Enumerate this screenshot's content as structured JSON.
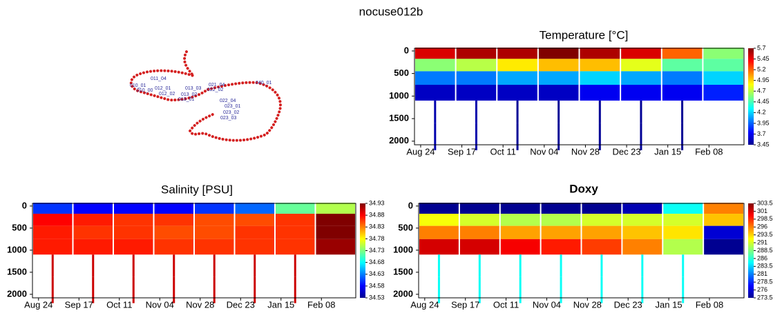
{
  "title": "nocuse012b",
  "chart_data": [
    {
      "type": "track",
      "labels": [
        "010_00",
        "010_01",
        "011_04",
        "012_01",
        "012_02",
        "013_01",
        "013_02",
        "013_03",
        "021_04",
        "022_02",
        "022_04",
        "023_01",
        "023_02",
        "023_03",
        "040_01"
      ],
      "color": "#d42020"
    },
    {
      "type": "section",
      "title": "Temperature [°C]",
      "bold_title": false,
      "categories": [
        "Aug 24",
        "Sep 17",
        "Oct 11",
        "Nov 04",
        "Nov 28",
        "Dec 23",
        "Jan 15",
        "Feb 08"
      ],
      "depths": [
        50,
        300,
        600,
        900,
        1300,
        1900
      ],
      "values": [
        [
          5.5,
          4.6,
          4.0,
          3.6,
          3.55,
          3.55
        ],
        [
          5.6,
          4.7,
          4.0,
          3.6,
          3.55,
          3.55
        ],
        [
          5.6,
          4.9,
          4.1,
          3.6,
          3.5,
          3.5
        ],
        [
          5.7,
          5.0,
          4.1,
          3.6,
          3.5,
          3.5
        ],
        [
          5.6,
          5.0,
          4.2,
          3.7,
          3.5,
          3.5
        ],
        [
          5.5,
          4.8,
          4.1,
          3.7,
          3.5,
          3.5
        ],
        [
          5.2,
          4.5,
          4.0,
          3.7,
          3.5,
          3.5
        ],
        [
          4.6,
          4.5,
          4.2,
          3.8,
          null,
          null
        ]
      ],
      "ylim": [
        -60,
        2080
      ],
      "yticks": [
        0,
        500,
        1000,
        1500,
        2000
      ],
      "clim": [
        3.45,
        5.7
      ],
      "cticks": [
        3.45,
        3.7,
        3.95,
        4.2,
        4.45,
        4.7,
        4.95,
        5.2,
        5.45,
        5.7
      ]
    },
    {
      "type": "section",
      "title": "Salinity [PSU]",
      "bold_title": false,
      "categories": [
        "Aug 24",
        "Sep 17",
        "Oct 11",
        "Nov 04",
        "Nov 28",
        "Dec 23",
        "Jan 15",
        "Feb 08"
      ],
      "depths": [
        50,
        300,
        600,
        900,
        1300,
        1900
      ],
      "values": [
        [
          34.6,
          34.88,
          34.87,
          34.87,
          34.9,
          34.9
        ],
        [
          34.58,
          34.87,
          34.86,
          34.87,
          34.9,
          34.9
        ],
        [
          34.58,
          34.86,
          34.86,
          34.87,
          34.9,
          34.9
        ],
        [
          34.58,
          34.86,
          34.85,
          34.86,
          34.9,
          34.9
        ],
        [
          34.6,
          34.85,
          34.85,
          34.86,
          34.9,
          34.9
        ],
        [
          34.62,
          34.85,
          34.86,
          34.86,
          34.9,
          34.9
        ],
        [
          34.72,
          34.86,
          34.86,
          34.86,
          34.9,
          34.9
        ],
        [
          34.75,
          34.93,
          34.93,
          34.92,
          null,
          null
        ]
      ],
      "ylim": [
        -60,
        2080
      ],
      "yticks": [
        0,
        500,
        1000,
        1500,
        2000
      ],
      "clim": [
        34.53,
        34.93
      ],
      "cticks": [
        34.53,
        34.58,
        34.63,
        34.68,
        34.73,
        34.78,
        34.83,
        34.88,
        34.93
      ]
    },
    {
      "type": "section",
      "title": "Doxy",
      "bold_title": true,
      "categories": [
        "Aug 24",
        "Sep 17",
        "Oct 11",
        "Nov 04",
        "Nov 28",
        "Dec 23",
        "Jan 15",
        "Feb 08"
      ],
      "depths": [
        50,
        300,
        600,
        900,
        1300,
        1900
      ],
      "values": [
        [
          274,
          292,
          296,
          301,
          285,
          285
        ],
        [
          274,
          291,
          296,
          301,
          285,
          285
        ],
        [
          274,
          290,
          295,
          300,
          285,
          285
        ],
        [
          274,
          290,
          295,
          299,
          285,
          285
        ],
        [
          274,
          291,
          295,
          298,
          285,
          285
        ],
        [
          275,
          291,
          294,
          296,
          285,
          285
        ],
        [
          285,
          291,
          293,
          290,
          285,
          285
        ],
        [
          296,
          294,
          276,
          274,
          null,
          null
        ]
      ],
      "ylim": [
        -60,
        2080
      ],
      "yticks": [
        0,
        500,
        1000,
        1500,
        2000
      ],
      "clim": [
        273.5,
        303.5
      ],
      "cticks": [
        273.5,
        276,
        278.5,
        281,
        283.5,
        286,
        288.5,
        291,
        293.5,
        296,
        298.5,
        301,
        303.5
      ]
    }
  ]
}
